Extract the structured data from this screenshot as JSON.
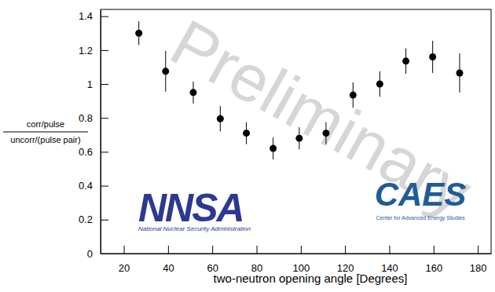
{
  "chart_data": {
    "type": "scatter",
    "xlabel": "two-neutron opening angle [Degrees]",
    "ylabel": [
      "corr/pulse",
      "uncorr/(pulse pair)"
    ],
    "annotations": [
      "Preliminary",
      "NNSA",
      "National Nuclear Security Administration",
      "CAES",
      "Center for Advanced Energy Studies"
    ],
    "x": [
      26.8,
      38.9,
      51.4,
      63.6,
      75.4,
      87.5,
      99.3,
      111.4,
      123.6,
      135.7,
      147.5,
      159.6,
      171.8
    ],
    "values": [
      1.3,
      1.075,
      0.95,
      0.795,
      0.71,
      0.62,
      0.68,
      0.71,
      0.935,
      1.0,
      1.135,
      1.16,
      1.065
    ],
    "errors": [
      0.07,
      0.12,
      0.065,
      0.075,
      0.065,
      0.065,
      0.065,
      0.065,
      0.075,
      0.075,
      0.075,
      0.095,
      0.115
    ],
    "color": "#000000",
    "marker": "circle",
    "xlim": [
      9.5,
      186
    ],
    "ylim": [
      0,
      1.44
    ],
    "xticks": [
      20,
      40,
      60,
      80,
      100,
      120,
      140,
      160,
      180
    ],
    "yticks": [
      0,
      0.2,
      0.4,
      0.6,
      0.8,
      1,
      1.2,
      1.4
    ],
    "grid": false
  }
}
